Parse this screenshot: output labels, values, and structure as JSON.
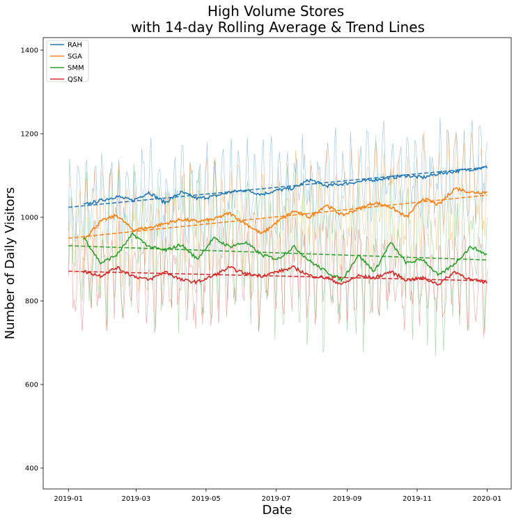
{
  "chart_data": {
    "type": "line",
    "title_lines": [
      "High Volume Stores",
      "with 14-day Rolling Average & Trend Lines"
    ],
    "xlabel": "Date",
    "ylabel": "Number of Daily Visitors",
    "x_start": "2019-01-01",
    "x_end": "2020-01-01",
    "xlim": [
      "2018-12-10",
      "2020-01-22"
    ],
    "ylim": [
      350,
      1430
    ],
    "x_ticks": [
      {
        "date": "2019-01-01",
        "label": "2019-01"
      },
      {
        "date": "2019-03-01",
        "label": "2019-03"
      },
      {
        "date": "2019-05-01",
        "label": "2019-05"
      },
      {
        "date": "2019-07-01",
        "label": "2019-07"
      },
      {
        "date": "2019-09-01",
        "label": "2019-09"
      },
      {
        "date": "2019-11-01",
        "label": "2019-11"
      },
      {
        "date": "2020-01-01",
        "label": "2020-01"
      }
    ],
    "y_ticks": [
      400,
      600,
      800,
      1000,
      1200,
      1400
    ],
    "grid": false,
    "legend_position": "top-left",
    "series": [
      {
        "name": "RAH",
        "color": "#1f77b4",
        "daily_mean": 1070,
        "daily_noise": 95,
        "rolling_avg": [
          1025,
          1030,
          1040,
          1050,
          1040,
          1060,
          1035,
          1060,
          1045,
          1050,
          1060,
          1065,
          1055,
          1065,
          1070,
          1090,
          1075,
          1080,
          1085,
          1090,
          1095,
          1100,
          1095,
          1105,
          1110,
          1115,
          1120
        ],
        "trend_start": 1024,
        "trend_end": 1120
      },
      {
        "name": "SGA",
        "color": "#ff7f0e",
        "daily_mean": 995,
        "daily_noise": 115,
        "rolling_avg": [
          960,
          950,
          990,
          1005,
          970,
          975,
          985,
          995,
          990,
          995,
          1010,
          985,
          960,
          990,
          1015,
          1000,
          1030,
          1005,
          1020,
          1035,
          1025,
          1000,
          1045,
          1030,
          1070,
          1060,
          1060
        ],
        "trend_start": 950,
        "trend_end": 1053
      },
      {
        "name": "SMM",
        "color": "#2ca02c",
        "daily_mean": 910,
        "daily_noise": 150,
        "rolling_avg": [
          940,
          950,
          890,
          910,
          960,
          930,
          920,
          935,
          900,
          950,
          930,
          940,
          910,
          900,
          930,
          895,
          870,
          850,
          910,
          870,
          940,
          890,
          900,
          860,
          890,
          930,
          910
        ],
        "trend_start": 932,
        "trend_end": 898
      },
      {
        "name": "QSN",
        "color": "#d62728",
        "daily_mean": 860,
        "daily_noise": 95,
        "rolling_avg": [
          855,
          870,
          860,
          880,
          860,
          850,
          870,
          850,
          845,
          860,
          880,
          865,
          860,
          870,
          880,
          860,
          855,
          840,
          860,
          855,
          870,
          850,
          855,
          840,
          870,
          850,
          845
        ],
        "trend_start": 871,
        "trend_end": 848
      }
    ]
  }
}
